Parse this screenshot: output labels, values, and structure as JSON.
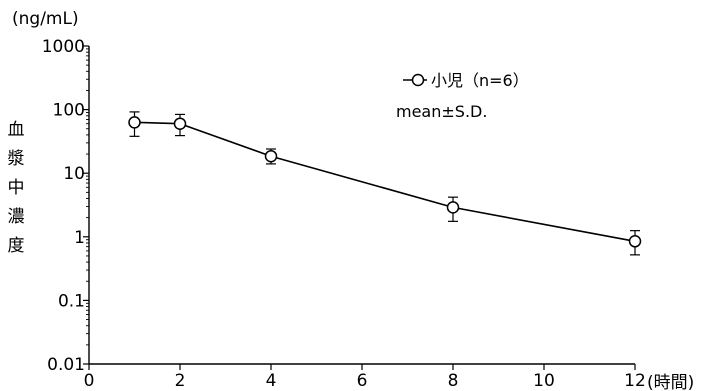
{
  "chart_data": {
    "type": "line",
    "title": "",
    "xlabel": "(時間)",
    "ylabel_chars": [
      "血",
      "漿",
      "中",
      "濃",
      "度"
    ],
    "y_unit": "(ng/mL)",
    "x_scale": "linear",
    "y_scale": "log",
    "xlim": [
      0,
      12
    ],
    "ylim": [
      0.01,
      1000
    ],
    "x_ticks": [
      0,
      2,
      4,
      6,
      8,
      10,
      12
    ],
    "x_tick_labels": [
      "0",
      "2",
      "4",
      "6",
      "8",
      "10",
      "12"
    ],
    "y_ticks": [
      0.01,
      0.1,
      1,
      10,
      100,
      1000
    ],
    "y_tick_labels": [
      "0.01",
      "0.1",
      "1",
      "10",
      "100",
      "1000"
    ],
    "grid": false,
    "legend_position": "top-right",
    "legend_note": "mean±S.D.",
    "series": [
      {
        "name": "小児（n=6）",
        "color": "#000000",
        "marker": "open-circle",
        "x": [
          1,
          2,
          4,
          8,
          12
        ],
        "y": [
          63,
          60,
          18.5,
          2.9,
          0.85
        ],
        "y_upper": [
          92,
          84,
          24,
          4.2,
          1.25
        ],
        "y_lower": [
          38,
          39,
          14,
          1.75,
          0.52
        ]
      }
    ]
  }
}
